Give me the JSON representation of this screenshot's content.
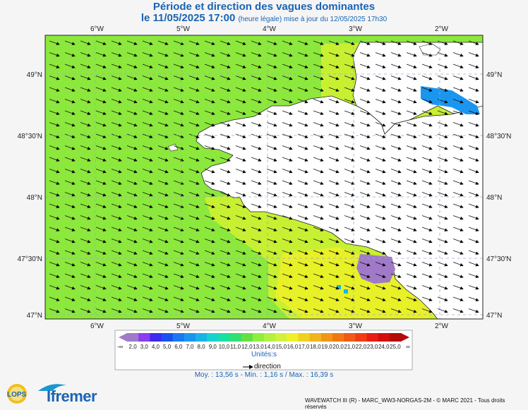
{
  "title": "Période et direction des vagues dominantes",
  "subtitle": {
    "date": "le 11/05/2025 17:00",
    "note": "(heure légale) mise à jour du 12/05/2025 17h30"
  },
  "map": {
    "lon_labels": [
      "6°W",
      "5°W",
      "4°W",
      "3°W",
      "2°W"
    ],
    "lat_labels": [
      "49°N",
      "48°30'N",
      "48°N",
      "47°30'N",
      "47°N"
    ]
  },
  "scale": {
    "values": [
      "2,0",
      "3,0",
      "4,0",
      "5,0",
      "6,0",
      "7,0",
      "8,0",
      "9,0",
      "10,0",
      "11,0",
      "12,0",
      "13,0",
      "14,0",
      "15,0",
      "16,0",
      "17,0",
      "18,0",
      "19,0",
      "20,0",
      "21,0",
      "22,0",
      "23,0",
      "24,0",
      "25,0"
    ],
    "min_symbol": "-∞",
    "max_symbol": "∞",
    "colors": [
      "#a07ac8",
      "#8a3cf0",
      "#4028f0",
      "#1a50f0",
      "#1a78f0",
      "#1a96f0",
      "#18b4e8",
      "#18d2d2",
      "#18e0a0",
      "#30e070",
      "#64e040",
      "#8cf040",
      "#b4f040",
      "#d2f040",
      "#f0f02a",
      "#f0d21e",
      "#f0b41e",
      "#f09614",
      "#f07814",
      "#f05a14",
      "#f03c14",
      "#e61e14",
      "#d20f0f",
      "#b40a0a"
    ]
  },
  "units": "Unités:s",
  "direction_label": "direction",
  "stats": "Moy. : 13,56 s   -   Min. : 1,16 s / Max. : 16,39 s",
  "footer": "WAVEWATCH III (R) - MARC_WW3-NORGAS-2M - © MARC 2021 - Tous droits réservés",
  "logos": {
    "lops": "LOPS",
    "ifremer": "Ifremer"
  }
}
